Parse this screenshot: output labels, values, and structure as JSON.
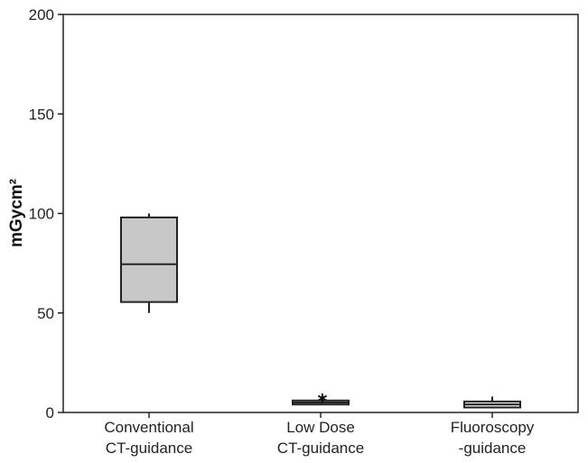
{
  "chart_data": {
    "type": "boxplot",
    "title": "",
    "xlabel": "",
    "ylabel": "mGycm²",
    "ylim": [
      0,
      200
    ],
    "yticks": [
      0,
      50,
      100,
      150,
      200
    ],
    "grid": false,
    "colors": {
      "box_fill": "#c8c8c8",
      "box_fill_small": "#e6e6e6",
      "line": "#222222"
    },
    "groups": [
      {
        "label_lines": [
          "Conventional",
          "CT-guidance"
        ],
        "whisker_low": 50,
        "q1": 55.5,
        "median": 74.5,
        "q3": 98,
        "whisker_high": 100,
        "outliers": []
      },
      {
        "label_lines": [
          "Low Dose",
          "CT-guidance"
        ],
        "whisker_low": 4,
        "q1": 4,
        "median": 5,
        "q3": 6,
        "whisker_high": 6,
        "outliers": [
          8
        ]
      },
      {
        "label_lines": [
          "Fluoroscopy",
          "-guidance"
        ],
        "whisker_low": 2,
        "q1": 2.5,
        "median": 4,
        "q3": 5.5,
        "whisker_high": 8,
        "outliers": []
      }
    ]
  }
}
